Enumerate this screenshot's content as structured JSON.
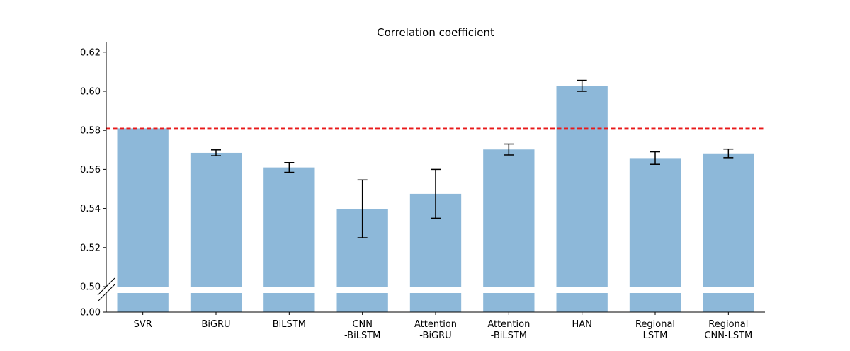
{
  "chart_data": {
    "type": "bar",
    "title": "Correlation coefficient",
    "xlabel": "",
    "ylabel": "",
    "categories": [
      "SVR",
      "BiGRU",
      "BiLSTM",
      "CNN\n-BiLSTM",
      "Attention\n-BiGRU",
      "Attention\n-BiLSTM",
      "HAN",
      "Regional\nLSTM",
      "Regional\nCNN-LSTM"
    ],
    "values": [
      0.581,
      0.5685,
      0.561,
      0.5398,
      0.5475,
      0.5702,
      0.6028,
      0.5658,
      0.5682
    ],
    "errors": [
      0,
      0.0015,
      0.0025,
      0.0148,
      0.0125,
      0.0028,
      0.0028,
      0.0032,
      0.0022
    ],
    "ylim": [
      0.5,
      0.625
    ],
    "broken_axis": {
      "lower_tick": "0.00",
      "lower_value": 0
    },
    "y_ticks": [
      "0.50",
      "0.52",
      "0.54",
      "0.56",
      "0.58",
      "0.60",
      "0.62"
    ],
    "y_tick_values": [
      0.5,
      0.52,
      0.54,
      0.56,
      0.58,
      0.6,
      0.62
    ],
    "reference_line": {
      "value": 0.581,
      "color": "#e8191a",
      "style": "dashed"
    },
    "bar_color": "#8db8d9",
    "grid": false
  }
}
